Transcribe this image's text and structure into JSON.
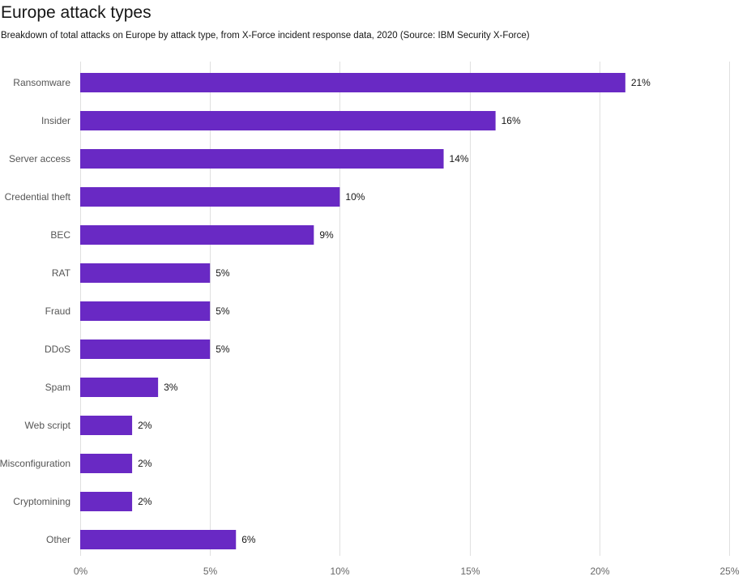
{
  "chart_data": {
    "type": "bar",
    "orientation": "horizontal",
    "title": "Europe attack types",
    "subtitle": "Breakdown of total attacks on Europe by attack type, from X-Force incident response data, 2020 (Source: IBM Security X-Force)",
    "categories": [
      "Ransomware",
      "Insider",
      "Server access",
      "Credential theft",
      "BEC",
      "RAT",
      "Fraud",
      "DDoS",
      "Spam",
      "Web script",
      "Misconfiguration",
      "Cryptomining",
      "Other"
    ],
    "values": [
      21,
      16,
      14,
      10,
      9,
      5,
      5,
      5,
      3,
      2,
      2,
      2,
      6
    ],
    "data_labels": [
      "21%",
      "16%",
      "14%",
      "10%",
      "9%",
      "5%",
      "5%",
      "5%",
      "3%",
      "2%",
      "2%",
      "2%",
      "6%"
    ],
    "xlim": [
      0,
      25
    ],
    "xticks": [
      0,
      5,
      10,
      15,
      20,
      25
    ],
    "xtick_labels": [
      "0%",
      "5%",
      "10%",
      "15%",
      "20%",
      "25%"
    ],
    "xlabel": "",
    "ylabel": "",
    "grid": true,
    "legend": "none",
    "bar_color": "#6929c4",
    "grid_color": "#e0e0e0"
  }
}
